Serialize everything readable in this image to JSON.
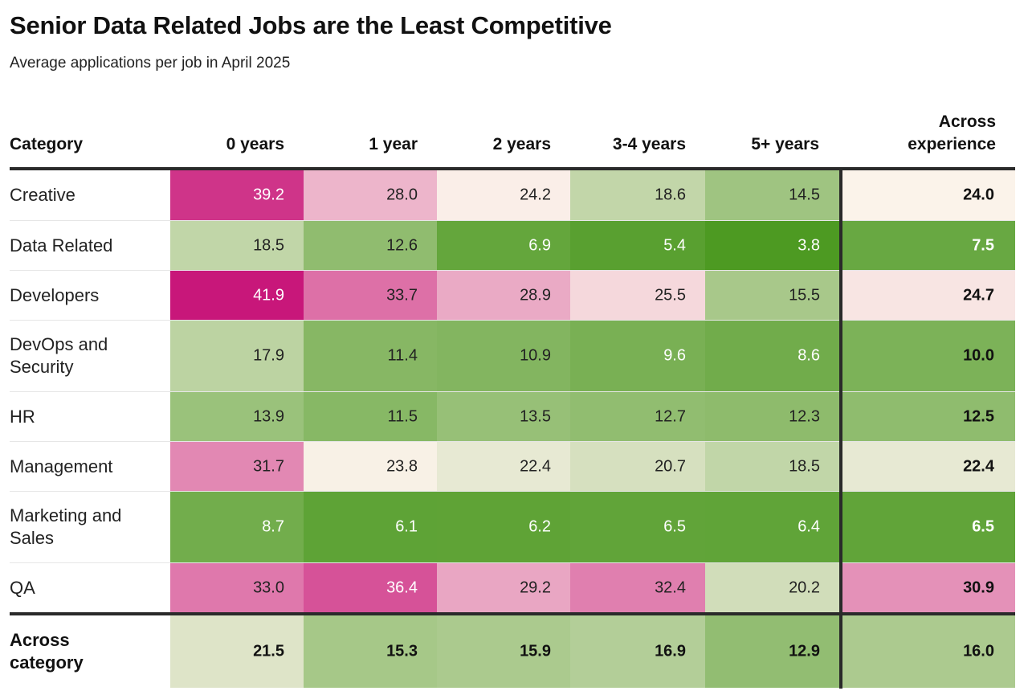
{
  "title": "Senior Data Related Jobs are the Least Competitive",
  "subtitle": "Average applications per job in April 2025",
  "chart_data": {
    "type": "table",
    "columns": [
      "Category",
      "0 years",
      "1 year",
      "2 years",
      "3-4 years",
      "5+ years",
      "Across experience"
    ],
    "rows": [
      {
        "category": "Creative",
        "values": [
          "39.2",
          "28.0",
          "24.2",
          "18.6",
          "14.5"
        ],
        "across": "24.0"
      },
      {
        "category": "Data Related",
        "values": [
          "18.5",
          "12.6",
          "6.9",
          "5.4",
          "3.8"
        ],
        "across": "7.5"
      },
      {
        "category": "Developers",
        "values": [
          "41.9",
          "33.7",
          "28.9",
          "25.5",
          "15.5"
        ],
        "across": "24.7"
      },
      {
        "category": "DevOps and Security",
        "values": [
          "17.9",
          "11.4",
          "10.9",
          "9.6",
          "8.6"
        ],
        "across": "10.0"
      },
      {
        "category": "HR",
        "values": [
          "13.9",
          "11.5",
          "13.5",
          "12.7",
          "12.3"
        ],
        "across": "12.5"
      },
      {
        "category": "Management",
        "values": [
          "31.7",
          "23.8",
          "22.4",
          "20.7",
          "18.5"
        ],
        "across": "22.4"
      },
      {
        "category": "Marketing and Sales",
        "values": [
          "8.7",
          "6.1",
          "6.2",
          "6.5",
          "6.4"
        ],
        "across": "6.5"
      },
      {
        "category": "QA",
        "values": [
          "33.0",
          "36.4",
          "29.2",
          "32.4",
          "20.2"
        ],
        "across": "30.9"
      }
    ],
    "totals": {
      "label": "Across category",
      "values": [
        "21.5",
        "15.3",
        "15.9",
        "16.9",
        "12.9"
      ],
      "across": "16.0"
    },
    "color_scale": {
      "low": "#4d9a22",
      "mid": "#fbf3ea",
      "high": "#c8177a"
    }
  }
}
